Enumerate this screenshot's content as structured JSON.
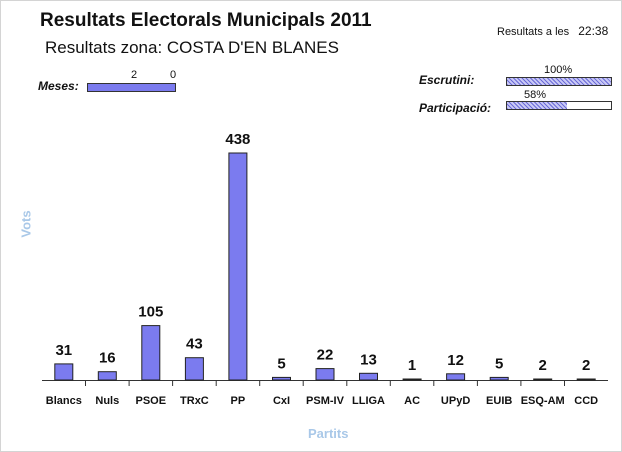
{
  "header": {
    "title": "Resultats Electorals Municipals 2011",
    "subtitle": "Resultats zona: COSTA D'EN BLANES",
    "time_label": "Resultats a les",
    "time_value": "22:38"
  },
  "meses": {
    "label": "Meses:",
    "value_a": "2",
    "value_b": "0",
    "fill_fraction": 1.0,
    "color": "#7b7bef"
  },
  "escrutini": {
    "label": "Escrutini:",
    "percent_text": "100%",
    "fill_fraction": 1.0
  },
  "participacio": {
    "label": "Participació:",
    "percent_text": "58%",
    "fill_fraction": 0.58
  },
  "chart_data": {
    "type": "bar",
    "categories": [
      "Blancs",
      "Nuls",
      "PSOE",
      "TRxC",
      "PP",
      "CxI",
      "PSM-IV",
      "LLIGA",
      "AC",
      "UPyD",
      "EUIB",
      "ESQ-AM",
      "CCD"
    ],
    "values": [
      31,
      16,
      105,
      43,
      438,
      5,
      22,
      13,
      1,
      12,
      5,
      2,
      2
    ],
    "title": "",
    "xlabel": "Partits",
    "ylabel": "Vots",
    "ylim": [
      0,
      438
    ],
    "grid": false,
    "bar_color": "#7b7bef"
  }
}
